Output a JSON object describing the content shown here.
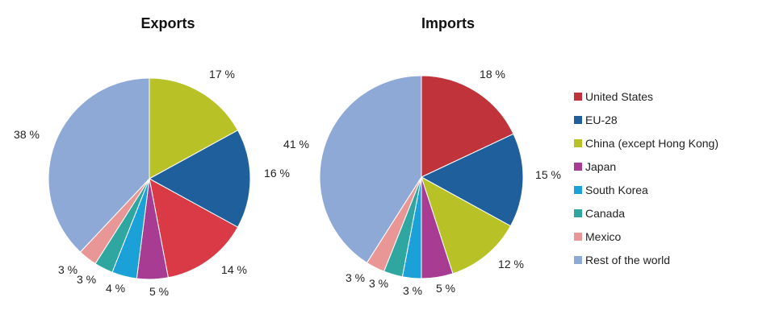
{
  "legend": {
    "items": [
      {
        "name": "United States",
        "color": "#c0333b"
      },
      {
        "name": "EU-28",
        "color": "#1f5f9c"
      },
      {
        "name": "China (except Hong Kong)",
        "color": "#b8c226"
      },
      {
        "name": "Japan",
        "color": "#a83c93"
      },
      {
        "name": "South Korea",
        "color": "#1ba0d8"
      },
      {
        "name": "Canada",
        "color": "#2fa7a0"
      },
      {
        "name": "Mexico",
        "color": "#e89696"
      },
      {
        "name": "Rest of the world",
        "color": "#8ea9d6"
      }
    ]
  },
  "chart_data": [
    {
      "type": "pie",
      "title": "Exports",
      "start_angle_deg": 0,
      "direction": "clockwise",
      "slices": [
        {
          "name": "China (except Hong Kong)",
          "value": 17,
          "label": "17 %",
          "color": "#b8c226"
        },
        {
          "name": "EU-28",
          "value": 16,
          "label": "16 %",
          "color": "#1f5f9c"
        },
        {
          "name": "United States",
          "value": 14,
          "label": "14 %",
          "color": "#d93a46"
        },
        {
          "name": "Japan",
          "value": 5,
          "label": "5 %",
          "color": "#a83c93"
        },
        {
          "name": "South Korea",
          "value": 4,
          "label": "4 %",
          "color": "#1ba0d8"
        },
        {
          "name": "Canada",
          "value": 3,
          "label": "3 %",
          "color": "#2fa7a0"
        },
        {
          "name": "Mexico",
          "value": 3,
          "label": "3 %",
          "color": "#e89696"
        },
        {
          "name": "Rest of the world",
          "value": 38,
          "label": "38 %",
          "color": "#8ea9d6"
        }
      ],
      "legend": "right"
    },
    {
      "type": "pie",
      "title": "Imports",
      "start_angle_deg": 0,
      "direction": "clockwise",
      "slices": [
        {
          "name": "United States",
          "value": 18,
          "label": "18 %",
          "color": "#c0333b"
        },
        {
          "name": "EU-28",
          "value": 15,
          "label": "15 %",
          "color": "#1f5f9c"
        },
        {
          "name": "China (except Hong Kong)",
          "value": 12,
          "label": "12 %",
          "color": "#b8c226"
        },
        {
          "name": "Japan",
          "value": 5,
          "label": "5 %",
          "color": "#a83c93"
        },
        {
          "name": "South Korea",
          "value": 3,
          "label": "3 %",
          "color": "#1ba0d8"
        },
        {
          "name": "Canada",
          "value": 3,
          "label": "3 %",
          "color": "#2fa7a0"
        },
        {
          "name": "Mexico",
          "value": 3,
          "label": "3 %",
          "color": "#e89696"
        },
        {
          "name": "Rest of the world",
          "value": 41,
          "label": "41 %",
          "color": "#8ea9d6"
        }
      ],
      "legend": "right"
    }
  ]
}
